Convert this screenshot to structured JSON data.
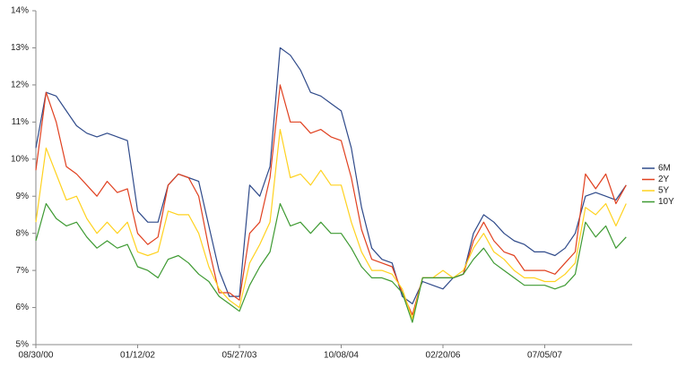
{
  "chart_data": {
    "type": "line",
    "categories": [
      "08/30/00",
      null,
      null,
      null,
      null,
      null,
      null,
      null,
      null,
      null,
      "01/12/02",
      null,
      null,
      null,
      null,
      null,
      null,
      null,
      null,
      null,
      "05/27/03",
      null,
      null,
      null,
      null,
      null,
      null,
      null,
      null,
      null,
      "10/08/04",
      null,
      null,
      null,
      null,
      null,
      null,
      null,
      null,
      null,
      "02/20/06",
      null,
      null,
      null,
      null,
      null,
      null,
      null,
      null,
      null,
      "07/05/07",
      null,
      null,
      null,
      null,
      null,
      null,
      null,
      null
    ],
    "series": [
      {
        "name": "6M",
        "color": "#2f4a8a",
        "values": [
          10.3,
          11.8,
          11.7,
          11.3,
          10.9,
          10.7,
          10.6,
          10.7,
          10.6,
          10.5,
          8.6,
          8.3,
          8.3,
          9.3,
          9.6,
          9.5,
          9.4,
          8.2,
          7.0,
          6.3,
          6.3,
          9.3,
          9.0,
          9.8,
          13.0,
          12.8,
          12.4,
          11.8,
          11.7,
          11.5,
          11.3,
          10.3,
          8.7,
          7.6,
          7.3,
          7.2,
          6.3,
          6.1,
          6.7,
          6.6,
          6.5,
          6.8,
          6.9,
          8.0,
          8.5,
          8.3,
          8.0,
          7.8,
          7.7,
          7.5,
          7.5,
          7.4,
          7.6,
          8.0,
          9.0,
          9.1,
          9.0,
          8.9,
          9.3
        ]
      },
      {
        "name": "2Y",
        "color": "#e0401f",
        "values": [
          9.7,
          11.8,
          11.0,
          9.8,
          9.6,
          9.3,
          9.0,
          9.4,
          9.1,
          9.2,
          8.0,
          7.7,
          7.9,
          9.3,
          9.6,
          9.5,
          9.0,
          7.6,
          6.4,
          6.4,
          6.2,
          8.0,
          8.3,
          9.5,
          12.0,
          11.0,
          11.0,
          10.7,
          10.8,
          10.6,
          10.5,
          9.5,
          8.1,
          7.3,
          7.2,
          7.1,
          6.4,
          5.8,
          6.8,
          6.8,
          6.8,
          6.8,
          6.9,
          7.8,
          8.3,
          7.8,
          7.5,
          7.4,
          7.0,
          7.0,
          7.0,
          6.9,
          7.2,
          7.5,
          9.6,
          9.2,
          9.6,
          8.8,
          9.3
        ]
      },
      {
        "name": "5Y",
        "color": "#ffd21f",
        "values": [
          8.3,
          10.3,
          9.6,
          8.9,
          9.0,
          8.4,
          8.0,
          8.3,
          8.0,
          8.3,
          7.5,
          7.4,
          7.5,
          8.6,
          8.5,
          8.5,
          8.0,
          7.1,
          6.5,
          6.2,
          6.0,
          7.2,
          7.7,
          8.3,
          10.8,
          9.5,
          9.6,
          9.3,
          9.7,
          9.3,
          9.3,
          8.3,
          7.5,
          7.0,
          7.0,
          6.9,
          6.5,
          5.7,
          6.8,
          6.8,
          7.0,
          6.8,
          7.0,
          7.6,
          8.0,
          7.5,
          7.3,
          7.0,
          6.8,
          6.8,
          6.7,
          6.7,
          6.9,
          7.2,
          8.7,
          8.5,
          8.8,
          8.2,
          8.8
        ]
      },
      {
        "name": "10Y",
        "color": "#3e9a32",
        "values": [
          7.8,
          8.8,
          8.4,
          8.2,
          8.3,
          7.9,
          7.6,
          7.8,
          7.6,
          7.7,
          7.1,
          7.0,
          6.8,
          7.3,
          7.4,
          7.2,
          6.9,
          6.7,
          6.3,
          6.1,
          5.9,
          6.6,
          7.1,
          7.5,
          8.8,
          8.2,
          8.3,
          8.0,
          8.3,
          8.0,
          8.0,
          7.6,
          7.1,
          6.8,
          6.8,
          6.7,
          6.4,
          5.6,
          6.8,
          6.8,
          6.8,
          6.8,
          6.9,
          7.3,
          7.6,
          7.2,
          7.0,
          6.8,
          6.6,
          6.6,
          6.6,
          6.5,
          6.6,
          6.9,
          8.3,
          7.9,
          8.2,
          7.6,
          7.9
        ]
      }
    ],
    "ylim": [
      5,
      14
    ],
    "yticks": [
      {
        "value": 5,
        "label": "5%"
      },
      {
        "value": 6,
        "label": "6%"
      },
      {
        "value": 7,
        "label": "7%"
      },
      {
        "value": 8,
        "label": "8%"
      },
      {
        "value": 9,
        "label": "9%"
      },
      {
        "value": 10,
        "label": "10%"
      },
      {
        "value": 11,
        "label": "11%"
      },
      {
        "value": 12,
        "label": "12%"
      },
      {
        "value": 13,
        "label": "13%"
      },
      {
        "value": 14,
        "label": "14%"
      }
    ],
    "grid": false,
    "legend": "right"
  }
}
